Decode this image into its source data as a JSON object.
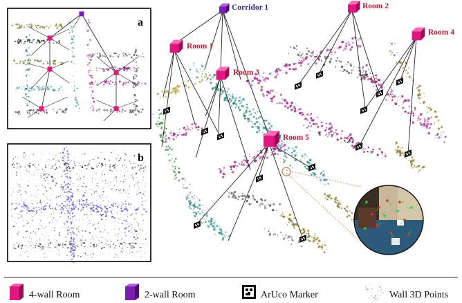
{
  "panels": {
    "a": {
      "letter": "a"
    },
    "b": {
      "letter": "b"
    }
  },
  "nodes": [
    {
      "id": "corridor1",
      "label": "Corridor 1",
      "kind": "2-wall-room"
    },
    {
      "id": "room1",
      "label": "Room 1",
      "kind": "4-wall-room"
    },
    {
      "id": "room2",
      "label": "Room 2",
      "kind": "4-wall-room"
    },
    {
      "id": "room3",
      "label": "Room 3",
      "kind": "4-wall-room"
    },
    {
      "id": "room4",
      "label": "Room 4",
      "kind": "4-wall-room"
    },
    {
      "id": "room5",
      "label": "Room 5",
      "kind": "4-wall-room"
    }
  ],
  "legend": [
    {
      "id": "four-wall",
      "label": "4-wall Room",
      "icon": "magenta-cube-icon"
    },
    {
      "id": "two-wall",
      "label": "2-wall Room",
      "icon": "purple-cube-icon"
    },
    {
      "id": "aruco",
      "label": "ArUco Marker",
      "icon": "aruco-marker-icon"
    },
    {
      "id": "wall-points",
      "label": "Wall 3D Points",
      "icon": "point-cloud-icon"
    }
  ],
  "colors": {
    "four_wall_room": "#e0177f",
    "two_wall_room": "#7a1fb0",
    "room_label": "#b8203a",
    "corridor_label": "#3a2a8c",
    "wall_teal": "#2f8f8f",
    "wall_magenta": "#9c2a8a",
    "wall_olive": "#8a7a2a",
    "wall_green": "#3a8a3a"
  }
}
